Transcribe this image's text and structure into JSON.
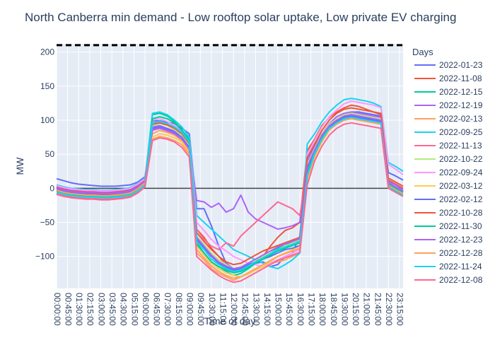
{
  "chart_data": {
    "type": "line",
    "title": "North Canberra min demand - Low rooftop solar uptake, Low private EV charging",
    "xlabel": "Time of day",
    "ylabel": "MW",
    "ylim": [
      -147,
      212
    ],
    "y_ticks": [
      -100,
      -50,
      0,
      50,
      100,
      150,
      200
    ],
    "x_tick_labels": [
      "00:00:00",
      "00:45:00",
      "01:30:00",
      "02:15:00",
      "03:00:00",
      "03:45:00",
      "04:30:00",
      "05:15:00",
      "06:00:00",
      "06:45:00",
      "07:30:00",
      "08:15:00",
      "09:00:00",
      "09:45:00",
      "10:30:00",
      "11:15:00",
      "12:00:00",
      "12:45:00",
      "13:30:00",
      "14:15:00",
      "15:00:00",
      "15:45:00",
      "16:30:00",
      "17:15:00",
      "18:00:00",
      "18:45:00",
      "19:30:00",
      "20:15:00",
      "21:00:00",
      "21:45:00",
      "22:30:00",
      "23:15:00"
    ],
    "n_intervals": 48,
    "interval": "00:30:00",
    "reference_lines": [
      {
        "kind": "dashed",
        "value": 210,
        "color": "#000000"
      },
      {
        "kind": "solid",
        "value": 0,
        "color": "#444444"
      }
    ],
    "legend": {
      "title": "Days",
      "placement": "right"
    },
    "grid": true,
    "series": [
      {
        "name": "2022-01-23",
        "color": "#636EFA",
        "values": [
          14,
          11,
          8,
          6,
          5,
          4,
          3,
          3,
          3,
          4,
          5,
          9,
          17,
          99,
          99,
          97,
          95,
          88,
          80,
          -30,
          -30,
          -55,
          -85,
          -110,
          -118,
          -120,
          -112,
          -110,
          -108,
          -115,
          -112,
          -100,
          -95,
          -70,
          45,
          62,
          80,
          92,
          100,
          108,
          112,
          112,
          110,
          108,
          106,
          23,
          18,
          12
        ]
      },
      {
        "name": "2022-11-08",
        "color": "#EF553B",
        "values": [
          1,
          -2,
          -4,
          -5,
          -6,
          -6,
          -7,
          -7,
          -6,
          -5,
          -3,
          3,
          12,
          96,
          98,
          95,
          90,
          80,
          70,
          -60,
          -72,
          -88,
          -100,
          -112,
          -118,
          -120,
          -115,
          -108,
          -100,
          -85,
          -72,
          -62,
          -58,
          -50,
          55,
          72,
          92,
          104,
          112,
          118,
          122,
          120,
          116,
          112,
          108,
          12,
          6,
          0
        ]
      },
      {
        "name": "2022-12-15",
        "color": "#00CC96",
        "values": [
          -3,
          -6,
          -8,
          -9,
          -10,
          -10,
          -11,
          -11,
          -10,
          -9,
          -7,
          -1,
          8,
          108,
          110,
          106,
          98,
          85,
          72,
          -80,
          -95,
          -108,
          -118,
          -122,
          -128,
          -125,
          -118,
          -110,
          -102,
          -95,
          -88,
          -82,
          -80,
          -75,
          25,
          55,
          75,
          90,
          98,
          104,
          106,
          104,
          102,
          100,
          98,
          8,
          2,
          -5
        ]
      },
      {
        "name": "2022-12-19",
        "color": "#AB63FA",
        "values": [
          2,
          -1,
          -3,
          -4,
          -5,
          -5,
          -6,
          -6,
          -5,
          -4,
          -2,
          4,
          12,
          90,
          92,
          88,
          84,
          78,
          65,
          -18,
          -20,
          -28,
          -22,
          -35,
          -30,
          -10,
          -35,
          -45,
          -50,
          -55,
          -60,
          -58,
          -55,
          -50,
          40,
          60,
          80,
          95,
          105,
          110,
          112,
          110,
          108,
          106,
          104,
          10,
          5,
          -2
        ]
      },
      {
        "name": "2022-02-13",
        "color": "#FFA15A",
        "values": [
          0,
          -3,
          -5,
          -6,
          -7,
          -7,
          -8,
          -8,
          -7,
          -6,
          -4,
          2,
          10,
          80,
          85,
          82,
          78,
          70,
          55,
          -95,
          -105,
          -118,
          -125,
          -130,
          -135,
          -130,
          -125,
          -120,
          -115,
          -110,
          -108,
          -105,
          -100,
          -95,
          20,
          50,
          75,
          90,
          98,
          105,
          108,
          106,
          104,
          102,
          100,
          8,
          2,
          -4
        ]
      },
      {
        "name": "2022-09-25",
        "color": "#19D3F3",
        "values": [
          5,
          2,
          0,
          -1,
          -2,
          -2,
          -3,
          -3,
          -2,
          -1,
          1,
          7,
          15,
          110,
          112,
          108,
          100,
          90,
          75,
          -40,
          -50,
          -60,
          -70,
          -80,
          -90,
          -95,
          -100,
          -105,
          -110,
          -115,
          -118,
          -112,
          -105,
          -95,
          65,
          80,
          98,
          112,
          122,
          130,
          132,
          130,
          128,
          125,
          120,
          38,
          32,
          25
        ]
      },
      {
        "name": "2022-11-13",
        "color": "#FF6692",
        "values": [
          -8,
          -11,
          -13,
          -14,
          -15,
          -15,
          -16,
          -16,
          -15,
          -14,
          -12,
          -6,
          3,
          85,
          88,
          84,
          80,
          72,
          58,
          -60,
          -75,
          -85,
          -90,
          -80,
          -85,
          -70,
          -60,
          -50,
          -40,
          -30,
          -20,
          -25,
          -30,
          -40,
          30,
          55,
          78,
          92,
          100,
          106,
          110,
          108,
          106,
          104,
          102,
          5,
          0,
          -6
        ]
      },
      {
        "name": "2022-10-22",
        "color": "#B6E880",
        "values": [
          -2,
          -5,
          -7,
          -8,
          -9,
          -9,
          -10,
          -10,
          -9,
          -8,
          -6,
          0,
          9,
          92,
          95,
          92,
          86,
          78,
          62,
          -70,
          -82,
          -95,
          -105,
          -112,
          -118,
          -115,
          -110,
          -105,
          -100,
          -95,
          -90,
          -85,
          -80,
          -75,
          35,
          58,
          80,
          94,
          102,
          108,
          110,
          108,
          106,
          104,
          102,
          6,
          0,
          -5
        ]
      },
      {
        "name": "2022-09-24",
        "color": "#FF97FF",
        "values": [
          4,
          1,
          -1,
          -2,
          -3,
          -3,
          -4,
          -4,
          -3,
          -2,
          0,
          6,
          14,
          100,
          102,
          98,
          92,
          84,
          70,
          -50,
          -62,
          -75,
          -85,
          -92,
          -100,
          -105,
          -110,
          -112,
          -115,
          -110,
          -105,
          -100,
          -95,
          -90,
          50,
          70,
          90,
          105,
          115,
          124,
          128,
          126,
          124,
          122,
          118,
          35,
          28,
          20
        ]
      },
      {
        "name": "2022-03-12",
        "color": "#FECB52",
        "values": [
          -5,
          -8,
          -10,
          -11,
          -12,
          -12,
          -13,
          -13,
          -12,
          -11,
          -9,
          -3,
          6,
          75,
          80,
          78,
          74,
          68,
          52,
          -85,
          -98,
          -110,
          -118,
          -124,
          -128,
          -130,
          -126,
          -120,
          -115,
          -108,
          -100,
          -95,
          -90,
          -85,
          10,
          45,
          68,
          85,
          95,
          100,
          102,
          100,
          98,
          96,
          94,
          3,
          -3,
          -9
        ]
      },
      {
        "name": "2022-02-12",
        "color": "#636EFA",
        "values": [
          -1,
          -4,
          -6,
          -7,
          -8,
          -8,
          -9,
          -9,
          -8,
          -7,
          -5,
          1,
          9,
          88,
          90,
          87,
          82,
          75,
          60,
          -75,
          -88,
          -100,
          -110,
          -116,
          -120,
          -118,
          -112,
          -108,
          -104,
          -100,
          -95,
          -90,
          -88,
          -84,
          30,
          54,
          76,
          90,
          98,
          104,
          106,
          104,
          102,
          100,
          98,
          7,
          1,
          -5
        ]
      },
      {
        "name": "2022-10-28",
        "color": "#EF553B",
        "values": [
          1,
          -2,
          -4,
          -5,
          -6,
          -6,
          -7,
          -7,
          -6,
          -5,
          -3,
          3,
          11,
          94,
          96,
          93,
          88,
          80,
          66,
          -65,
          -78,
          -90,
          -100,
          -108,
          -112,
          -110,
          -104,
          -98,
          -92,
          -88,
          -84,
          -80,
          -76,
          -72,
          45,
          65,
          85,
          100,
          110,
          116,
          118,
          116,
          114,
          112,
          110,
          15,
          9,
          3
        ]
      },
      {
        "name": "2022-11-30",
        "color": "#00CC96",
        "values": [
          -4,
          -7,
          -9,
          -10,
          -11,
          -11,
          -12,
          -12,
          -11,
          -10,
          -8,
          -2,
          7,
          102,
          105,
          102,
          96,
          85,
          70,
          -82,
          -95,
          -108,
          -115,
          -120,
          -124,
          -122,
          -116,
          -110,
          -104,
          -98,
          -92,
          -88,
          -84,
          -80,
          22,
          52,
          74,
          88,
          96,
          102,
          104,
          102,
          100,
          98,
          96,
          6,
          0,
          -6
        ]
      },
      {
        "name": "2022-12-23",
        "color": "#AB63FA",
        "values": [
          0,
          -3,
          -5,
          -6,
          -7,
          -7,
          -8,
          -8,
          -7,
          -6,
          -4,
          2,
          10,
          86,
          88,
          85,
          80,
          72,
          58,
          -72,
          -85,
          -98,
          -108,
          -114,
          -118,
          -116,
          -110,
          -104,
          -98,
          -92,
          -86,
          -82,
          -78,
          -74,
          32,
          56,
          78,
          92,
          100,
          106,
          108,
          106,
          104,
          102,
          100,
          8,
          2,
          -4
        ]
      },
      {
        "name": "2022-12-28",
        "color": "#FFA15A",
        "values": [
          -3,
          -6,
          -8,
          -9,
          -10,
          -10,
          -11,
          -11,
          -10,
          -9,
          -7,
          -1,
          8,
          72,
          76,
          74,
          70,
          64,
          50,
          -90,
          -102,
          -114,
          -122,
          -128,
          -132,
          -130,
          -124,
          -118,
          -112,
          -106,
          -100,
          -96,
          -92,
          -88,
          15,
          48,
          70,
          86,
          94,
          100,
          102,
          100,
          98,
          96,
          94,
          4,
          -2,
          -8
        ]
      },
      {
        "name": "2022-11-24",
        "color": "#19D3F3",
        "values": [
          -6,
          -9,
          -11,
          -12,
          -13,
          -13,
          -14,
          -14,
          -13,
          -12,
          -10,
          -4,
          5,
          96,
          98,
          95,
          90,
          82,
          68,
          -78,
          -90,
          -104,
          -112,
          -118,
          -122,
          -120,
          -114,
          -108,
          -102,
          -96,
          -90,
          -86,
          -82,
          -78,
          18,
          50,
          72,
          88,
          96,
          102,
          104,
          102,
          100,
          98,
          96,
          2,
          -4,
          -10
        ]
      },
      {
        "name": "2022-12-08",
        "color": "#FF6692",
        "values": [
          -9,
          -12,
          -14,
          -15,
          -16,
          -16,
          -17,
          -17,
          -16,
          -15,
          -13,
          -7,
          2,
          70,
          74,
          72,
          68,
          60,
          46,
          -100,
          -110,
          -120,
          -128,
          -134,
          -138,
          -136,
          -130,
          -124,
          -118,
          -112,
          -106,
          -102,
          -98,
          -94,
          5,
          40,
          62,
          78,
          88,
          94,
          96,
          94,
          92,
          90,
          88,
          0,
          -6,
          -12
        ]
      }
    ]
  }
}
